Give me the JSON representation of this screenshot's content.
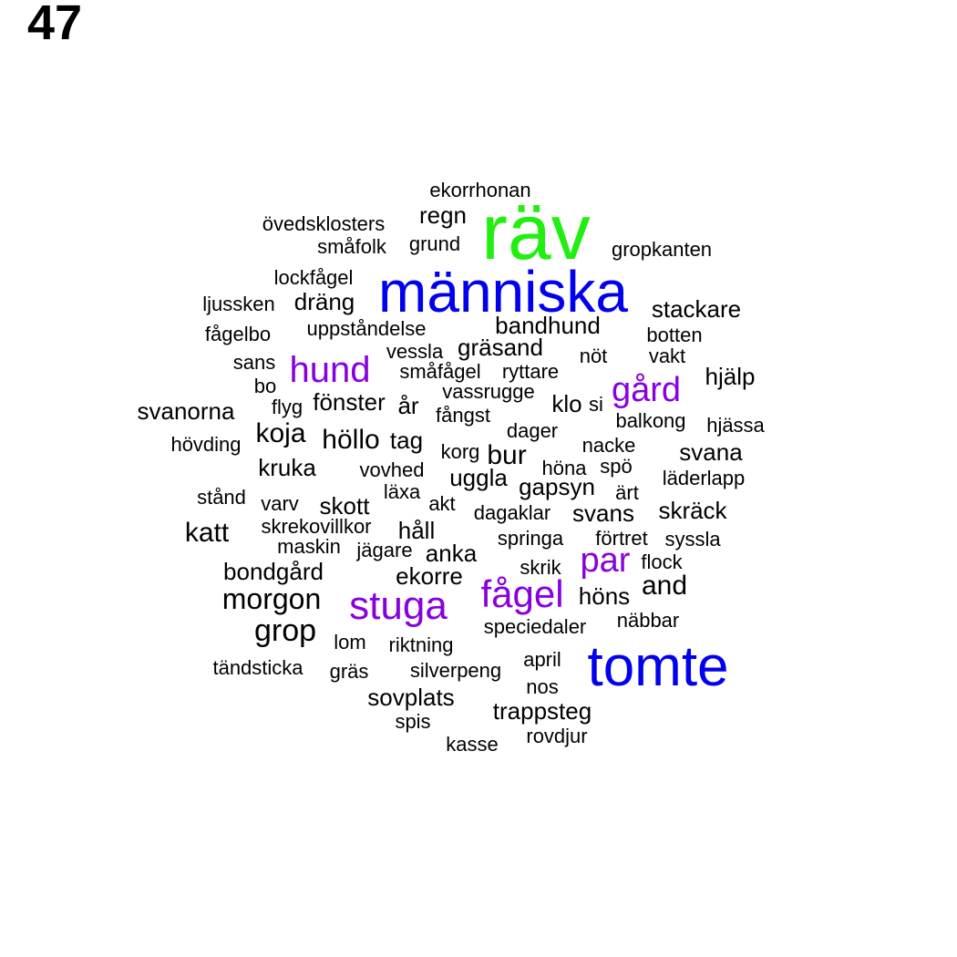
{
  "page_number": "47",
  "colors": {
    "level1": "#22ee11",
    "level2": "#0000ee",
    "level3": "#8800dd",
    "default": "#000000"
  },
  "words": [
    {
      "text": "räv",
      "level": 1
    },
    {
      "text": "människa",
      "level": 2
    },
    {
      "text": "tomte",
      "level": 2
    },
    {
      "text": "stuga",
      "level": 3
    },
    {
      "text": "fågel",
      "level": 3
    },
    {
      "text": "hund",
      "level": 3
    },
    {
      "text": "gård",
      "level": 3
    },
    {
      "text": "par",
      "level": 3
    },
    {
      "text": "ekorrhonan",
      "level": 0
    },
    {
      "text": "regn",
      "level": 0
    },
    {
      "text": "övedsklosters",
      "level": 0
    },
    {
      "text": "småfolk",
      "level": 0
    },
    {
      "text": "grund",
      "level": 0
    },
    {
      "text": "gropkanten",
      "level": 0
    },
    {
      "text": "lockfågel",
      "level": 0
    },
    {
      "text": "ljussken",
      "level": 0
    },
    {
      "text": "dräng",
      "level": 0
    },
    {
      "text": "stackare",
      "level": 0
    },
    {
      "text": "fågelbo",
      "level": 0
    },
    {
      "text": "uppståndelse",
      "level": 0
    },
    {
      "text": "bandhund",
      "level": 0
    },
    {
      "text": "botten",
      "level": 0
    },
    {
      "text": "vessla",
      "level": 0
    },
    {
      "text": "gräsand",
      "level": 0
    },
    {
      "text": "nöt",
      "level": 0
    },
    {
      "text": "vakt",
      "level": 0
    },
    {
      "text": "sans",
      "level": 0
    },
    {
      "text": "småfågel",
      "level": 0
    },
    {
      "text": "ryttare",
      "level": 0
    },
    {
      "text": "hjälp",
      "level": 0
    },
    {
      "text": "bo",
      "level": 0
    },
    {
      "text": "vassrugge",
      "level": 0
    },
    {
      "text": "flyg",
      "level": 0
    },
    {
      "text": "fönster",
      "level": 0
    },
    {
      "text": "år",
      "level": 0
    },
    {
      "text": "klo",
      "level": 0
    },
    {
      "text": "si",
      "level": 0
    },
    {
      "text": "svanorna",
      "level": 0
    },
    {
      "text": "fångst",
      "level": 0
    },
    {
      "text": "balkong",
      "level": 0
    },
    {
      "text": "hjässa",
      "level": 0
    },
    {
      "text": "dager",
      "level": 0
    },
    {
      "text": "koja",
      "level": 0
    },
    {
      "text": "höllo",
      "level": 0
    },
    {
      "text": "tag",
      "level": 0
    },
    {
      "text": "hövding",
      "level": 0
    },
    {
      "text": "korg",
      "level": 0
    },
    {
      "text": "bur",
      "level": 0
    },
    {
      "text": "nacke",
      "level": 0
    },
    {
      "text": "svana",
      "level": 0
    },
    {
      "text": "kruka",
      "level": 0
    },
    {
      "text": "vovhed",
      "level": 0
    },
    {
      "text": "höna",
      "level": 0
    },
    {
      "text": "spö",
      "level": 0
    },
    {
      "text": "uggla",
      "level": 0
    },
    {
      "text": "läderlapp",
      "level": 0
    },
    {
      "text": "gapsyn",
      "level": 0
    },
    {
      "text": "ärt",
      "level": 0
    },
    {
      "text": "stånd",
      "level": 0
    },
    {
      "text": "läxa",
      "level": 0
    },
    {
      "text": "varv",
      "level": 0
    },
    {
      "text": "skott",
      "level": 0
    },
    {
      "text": "akt",
      "level": 0
    },
    {
      "text": "dagaklar",
      "level": 0
    },
    {
      "text": "svans",
      "level": 0
    },
    {
      "text": "skräck",
      "level": 0
    },
    {
      "text": "katt",
      "level": 0
    },
    {
      "text": "skrekovillkor",
      "level": 0
    },
    {
      "text": "håll",
      "level": 0
    },
    {
      "text": "springa",
      "level": 0
    },
    {
      "text": "förtret",
      "level": 0
    },
    {
      "text": "syssla",
      "level": 0
    },
    {
      "text": "maskin",
      "level": 0
    },
    {
      "text": "jägare",
      "level": 0
    },
    {
      "text": "anka",
      "level": 0
    },
    {
      "text": "flock",
      "level": 0
    },
    {
      "text": "bondgård",
      "level": 0
    },
    {
      "text": "ekorre",
      "level": 0
    },
    {
      "text": "skrik",
      "level": 0
    },
    {
      "text": "and",
      "level": 0
    },
    {
      "text": "morgon",
      "level": 0
    },
    {
      "text": "höns",
      "level": 0
    },
    {
      "text": "näbbar",
      "level": 0
    },
    {
      "text": "grop",
      "level": 0
    },
    {
      "text": "speciedaler",
      "level": 0
    },
    {
      "text": "lom",
      "level": 0
    },
    {
      "text": "riktning",
      "level": 0
    },
    {
      "text": "tändsticka",
      "level": 0
    },
    {
      "text": "gräs",
      "level": 0
    },
    {
      "text": "silverpeng",
      "level": 0
    },
    {
      "text": "april",
      "level": 0
    },
    {
      "text": "nos",
      "level": 0
    },
    {
      "text": "sovplats",
      "level": 0
    },
    {
      "text": "trappsteg",
      "level": 0
    },
    {
      "text": "spis",
      "level": 0
    },
    {
      "text": "rovdjur",
      "level": 0
    },
    {
      "text": "kasse",
      "level": 0
    }
  ]
}
